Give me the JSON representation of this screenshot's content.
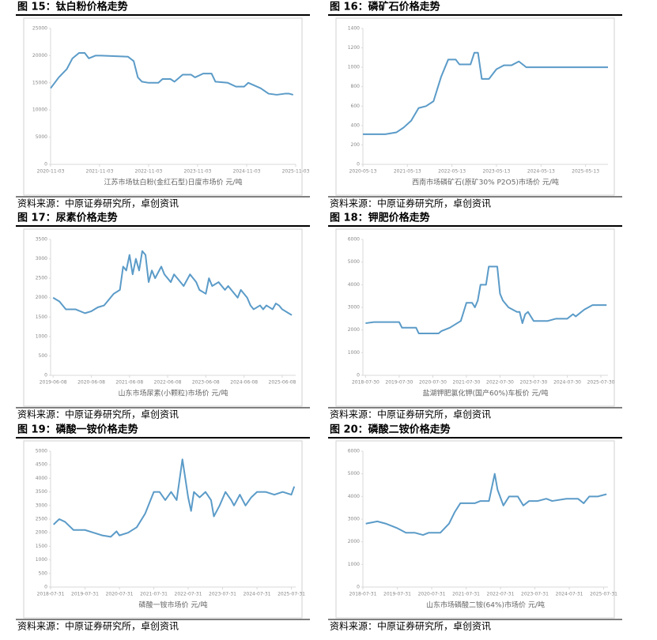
{
  "chart_data": [
    {
      "type": "line",
      "title": "图 15：钛白粉价格走势",
      "xlabel": "江苏市场钛白粉(金红石型)日度市场价 元/吨",
      "source": "资料来源：中原证券研究所，卓创资讯",
      "x": [
        "2020-11-03",
        "2021-01-03",
        "2021-03-03",
        "2021-04-15",
        "2021-06-03",
        "2021-07-15",
        "2021-08-15",
        "2021-10-03",
        "2021-11-15",
        "2022-06-03",
        "2022-07-15",
        "2022-08-15",
        "2022-09-15",
        "2022-11-03",
        "2023-01-15",
        "2023-02-15",
        "2023-04-15",
        "2023-05-15",
        "2023-07-15",
        "2023-09-15",
        "2023-10-15",
        "2023-12-15",
        "2024-02-15",
        "2024-03-15",
        "2024-06-15",
        "2024-08-15",
        "2024-10-15",
        "2024-11-15",
        "2025-02-15",
        "2025-04-15",
        "2025-06-15",
        "2025-08-15",
        "2025-09-15",
        "2025-10-15"
      ],
      "series": [
        {
          "name": "江苏市场钛白粉(金红石型)日度市场价",
          "color": "#5b9bc8",
          "values": [
            14000,
            16000,
            17500,
            19500,
            20500,
            20500,
            19500,
            20000,
            20000,
            19800,
            19000,
            16000,
            15200,
            15000,
            15000,
            15700,
            15700,
            15200,
            16500,
            16500,
            16000,
            16700,
            16700,
            15200,
            15000,
            14300,
            14300,
            15000,
            14000,
            13000,
            12800,
            13000,
            13000,
            12800
          ]
        }
      ],
      "xlim": [
        "2020-11-03",
        "2025-11-03"
      ],
      "xticks": [
        "2020-11-03",
        "2021-11-03",
        "2022-11-03",
        "2023-11-03",
        "2024-11-03",
        "2025-11-03"
      ],
      "ylim": [
        0,
        25000
      ],
      "yticks": [
        0,
        5000,
        10000,
        15000,
        20000,
        25000
      ],
      "grid": false
    },
    {
      "type": "line",
      "title": "图 16：磷矿石价格走势",
      "xlabel": "西南市场磷矿石(原矿30% P2O5)市场价 元/吨",
      "source": "资料来源：中原证券研究所，卓创资讯",
      "x": [
        "2020-05-13",
        "2020-11-13",
        "2021-02-13",
        "2021-04-13",
        "2021-06-13",
        "2021-08-13",
        "2021-10-13",
        "2021-12-13",
        "2022-02-13",
        "2022-04-13",
        "2022-06-13",
        "2022-07-13",
        "2022-10-13",
        "2022-11-13",
        "2022-12-13",
        "2023-01-13",
        "2023-03-13",
        "2023-05-13",
        "2023-07-13",
        "2023-09-13",
        "2023-11-13",
        "2024-01-13",
        "2025-11-13"
      ],
      "series": [
        {
          "name": "西南市场磷矿石(原矿30% P2O5)市场价",
          "color": "#5b9bc8",
          "values": [
            310,
            310,
            330,
            380,
            450,
            580,
            600,
            650,
            900,
            1080,
            1080,
            1030,
            1030,
            1150,
            1150,
            880,
            880,
            980,
            1020,
            1020,
            1060,
            1000,
            1000
          ]
        }
      ],
      "xlim": [
        "2020-05-13",
        "2025-11-13"
      ],
      "xticks": [
        "2020-05-13",
        "2021-05-13",
        "2022-05-13",
        "2023-05-13",
        "2024-05-13",
        "2025-05-13"
      ],
      "ylim": [
        0,
        1400
      ],
      "yticks": [
        0,
        200,
        400,
        600,
        800,
        1000,
        1200,
        1400
      ],
      "grid": false
    },
    {
      "type": "line",
      "title": "图 17：尿素价格走势",
      "xlabel": "山东市场尿素(小颗粒)市场价 元/吨",
      "source": "资料来源：中原证券研究所，卓创资讯",
      "x": [
        "2019-06-08",
        "2019-08-08",
        "2019-10-08",
        "2020-01-08",
        "2020-04-08",
        "2020-06-08",
        "2020-08-08",
        "2020-10-08",
        "2021-01-08",
        "2021-03-08",
        "2021-04-08",
        "2021-05-08",
        "2021-06-08",
        "2021-07-08",
        "2021-08-08",
        "2021-09-08",
        "2021-10-08",
        "2021-11-08",
        "2021-12-08",
        "2022-01-08",
        "2022-02-08",
        "2022-04-08",
        "2022-05-08",
        "2022-07-08",
        "2022-08-08",
        "2022-09-08",
        "2022-11-08",
        "2023-01-08",
        "2023-03-08",
        "2023-04-08",
        "2023-06-08",
        "2023-07-08",
        "2023-08-08",
        "2023-10-08",
        "2023-12-08",
        "2024-01-08",
        "2024-03-08",
        "2024-04-08",
        "2024-05-08",
        "2024-07-08",
        "2024-08-08",
        "2024-09-08",
        "2024-11-08",
        "2024-12-08",
        "2025-01-08",
        "2025-03-08",
        "2025-04-08",
        "2025-05-08",
        "2025-06-08",
        "2025-08-08",
        "2025-09-08"
      ],
      "series": [
        {
          "name": "山东市场尿素(小颗粒)市场价",
          "color": "#5b9bc8",
          "values": [
            2000,
            1900,
            1700,
            1700,
            1600,
            1650,
            1750,
            1800,
            2100,
            2200,
            2800,
            2700,
            3100,
            2600,
            3000,
            2700,
            3200,
            3100,
            2400,
            2700,
            2500,
            2800,
            2600,
            2400,
            2600,
            2500,
            2300,
            2600,
            2400,
            2200,
            2100,
            2500,
            2300,
            2400,
            2200,
            2300,
            2100,
            2000,
            2200,
            2000,
            1800,
            1700,
            1800,
            1700,
            1800,
            1700,
            1850,
            1800,
            1700,
            1600,
            1550
          ]
        }
      ],
      "xlim": [
        "2019-05-15",
        "2025-10-15"
      ],
      "xticks": [
        "2019-06-08",
        "2020-06-08",
        "2021-06-08",
        "2022-06-08",
        "2023-06-08",
        "2024-06-08",
        "2025-06-08"
      ],
      "ylim": [
        0,
        3500
      ],
      "yticks": [
        0,
        500,
        1000,
        1500,
        2000,
        2500,
        3000,
        3500
      ],
      "grid": false
    },
    {
      "type": "line",
      "title": "图 18：钾肥价格走势",
      "xlabel": "盐湖钾肥氯化钾(国产60%)车板价 元/吨",
      "source": "资料来源：中原证券研究所，卓创资讯",
      "x": [
        "2018-07-30",
        "2018-10-30",
        "2019-01-30",
        "2019-07-30",
        "2019-08-30",
        "2020-01-30",
        "2020-02-28",
        "2020-09-30",
        "2020-10-30",
        "2021-01-30",
        "2021-05-30",
        "2021-07-30",
        "2021-09-30",
        "2021-10-30",
        "2021-11-30",
        "2021-12-30",
        "2022-02-28",
        "2022-03-30",
        "2022-06-30",
        "2022-07-30",
        "2022-08-30",
        "2022-10-30",
        "2023-01-30",
        "2023-02-28",
        "2023-03-30",
        "2023-04-30",
        "2023-05-30",
        "2023-07-30",
        "2023-12-30",
        "2024-03-30",
        "2024-07-30",
        "2024-09-30",
        "2024-10-30",
        "2025-01-30",
        "2025-04-30",
        "2025-09-30"
      ],
      "series": [
        {
          "name": "盐湖钾肥氯化钾(国产60%)车板价",
          "color": "#5b9bc8",
          "values": [
            2300,
            2350,
            2350,
            2350,
            2100,
            2100,
            1850,
            1850,
            1950,
            2100,
            2400,
            3200,
            3200,
            3000,
            3300,
            4000,
            4000,
            4800,
            4800,
            3600,
            3300,
            3000,
            2800,
            2800,
            2300,
            2700,
            2800,
            2400,
            2400,
            2500,
            2500,
            2700,
            2600,
            2900,
            3100,
            3100
          ]
        }
      ],
      "xlim": [
        "2018-07-01",
        "2025-10-15"
      ],
      "xticks": [
        "2018-07-30",
        "2019-07-30",
        "2020-07-30",
        "2021-07-30",
        "2022-07-30",
        "2023-07-30",
        "2024-07-30",
        "2025-07-30"
      ],
      "ylim": [
        0,
        6000
      ],
      "yticks": [
        0,
        1000,
        2000,
        3000,
        4000,
        5000,
        6000
      ],
      "grid": false
    },
    {
      "type": "line",
      "title": "图 19：磷酸一铵价格走势",
      "xlabel": "磷酸一铵市场价 元/吨",
      "source": "资料来源：中原证券研究所，卓创资讯",
      "x": [
        "2018-08-31",
        "2018-10-31",
        "2018-12-31",
        "2019-03-31",
        "2019-07-31",
        "2019-10-31",
        "2020-01-31",
        "2020-04-30",
        "2020-06-30",
        "2020-07-31",
        "2020-10-31",
        "2021-01-31",
        "2021-04-30",
        "2021-07-31",
        "2021-09-30",
        "2021-11-30",
        "2022-01-31",
        "2022-03-31",
        "2022-05-31",
        "2022-07-31",
        "2022-08-31",
        "2022-09-30",
        "2022-11-30",
        "2023-01-31",
        "2023-03-31",
        "2023-04-30",
        "2023-06-30",
        "2023-08-31",
        "2023-10-31",
        "2023-11-30",
        "2024-01-31",
        "2024-03-31",
        "2024-05-31",
        "2024-07-31",
        "2024-10-31",
        "2025-01-31",
        "2025-04-30",
        "2025-07-31",
        "2025-08-31"
      ],
      "series": [
        {
          "name": "磷酸一铵市场价",
          "color": "#5b9bc8",
          "values": [
            2300,
            2500,
            2400,
            2100,
            2100,
            2000,
            1900,
            1850,
            2050,
            1900,
            2000,
            2200,
            2700,
            3500,
            3500,
            3200,
            3500,
            3200,
            4700,
            3300,
            2800,
            3500,
            3300,
            3500,
            3200,
            2600,
            3000,
            3500,
            3200,
            3000,
            3400,
            3000,
            3300,
            3500,
            3500,
            3400,
            3500,
            3400,
            3700
          ]
        }
      ],
      "xlim": [
        "2018-07-31",
        "2025-09-15"
      ],
      "xticks": [
        "2018-07-31",
        "2019-07-31",
        "2020-07-31",
        "2021-07-31",
        "2022-07-31",
        "2023-07-31",
        "2024-07-31",
        "2025-07-31"
      ],
      "ylim": [
        0,
        5000
      ],
      "yticks": [
        0,
        500,
        1000,
        1500,
        2000,
        2500,
        3000,
        3500,
        4000,
        4500,
        5000
      ],
      "grid": false
    },
    {
      "type": "line",
      "title": "图 20：磷酸二铵价格走势",
      "xlabel": "山东市场磷酸二铵(64%)市场价 元/吨",
      "source": "资料来源：中原证券研究所，卓创资讯",
      "x": [
        "2018-08-31",
        "2018-12-31",
        "2019-03-31",
        "2019-07-31",
        "2019-10-31",
        "2020-01-31",
        "2020-04-30",
        "2020-06-30",
        "2020-10-31",
        "2021-01-31",
        "2021-03-31",
        "2021-05-31",
        "2021-10-31",
        "2021-12-31",
        "2022-03-31",
        "2022-05-31",
        "2022-06-30",
        "2022-08-31",
        "2022-10-31",
        "2023-01-31",
        "2023-03-31",
        "2023-05-31",
        "2023-08-31",
        "2023-11-30",
        "2024-01-31",
        "2024-06-30",
        "2024-10-31",
        "2024-12-31",
        "2025-02-28",
        "2025-05-31",
        "2025-08-31"
      ],
      "series": [
        {
          "name": "山东市场磷酸二铵(64%)市场价",
          "color": "#5b9bc8",
          "values": [
            2800,
            2900,
            2800,
            2600,
            2400,
            2400,
            2300,
            2400,
            2400,
            2800,
            3300,
            3700,
            3700,
            3800,
            3800,
            5000,
            4300,
            3600,
            4000,
            4000,
            3600,
            3800,
            3800,
            3900,
            3800,
            3900,
            3900,
            3700,
            4000,
            4000,
            4100
          ]
        }
      ],
      "xlim": [
        "2018-07-31",
        "2025-09-15"
      ],
      "xticks": [
        "2018-07-31",
        "2019-07-31",
        "2020-07-31",
        "2021-07-31",
        "2022-07-31",
        "2023-07-31",
        "2024-07-31",
        "2025-07-31"
      ],
      "ylim": [
        0,
        6000
      ],
      "yticks": [
        0,
        1000,
        2000,
        3000,
        4000,
        5000,
        6000
      ],
      "grid": false
    }
  ]
}
